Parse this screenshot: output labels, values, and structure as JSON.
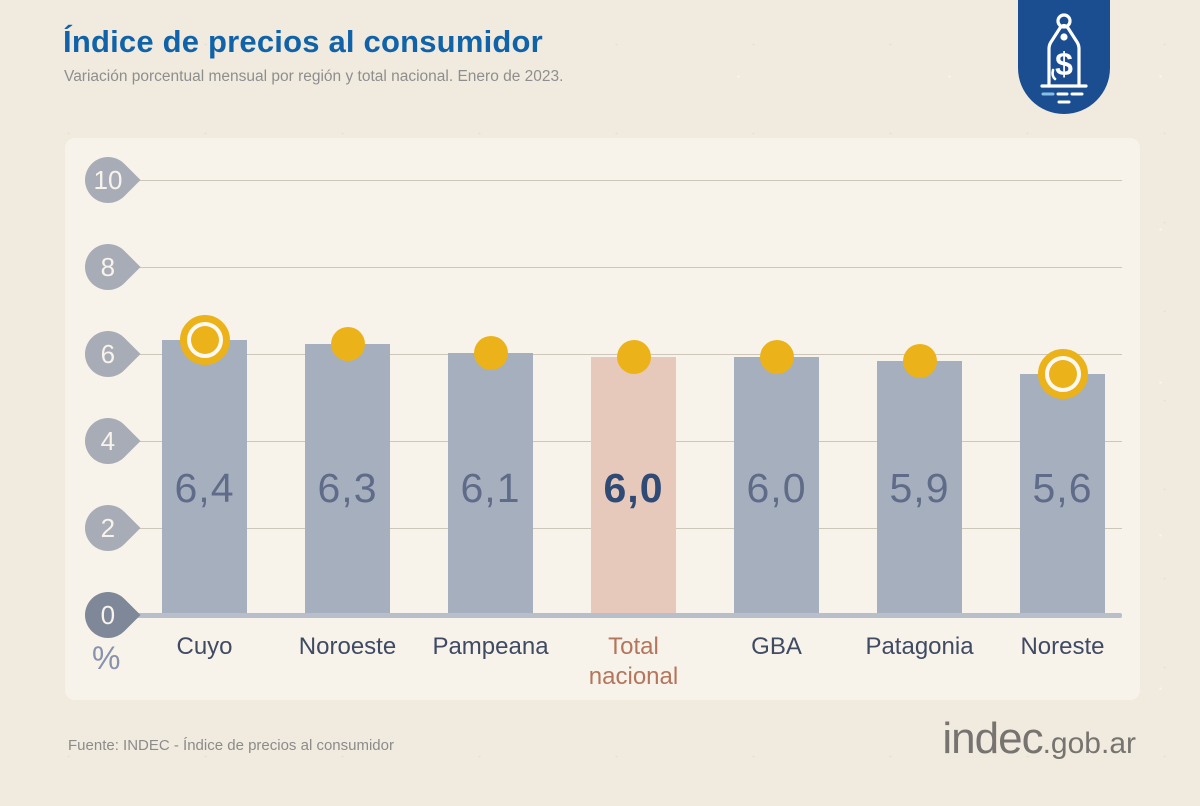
{
  "header": {
    "title": "Índice de precios al consumidor",
    "subtitle": "Variación porcentual mensual por región y total nacional. Enero de 2023."
  },
  "footer": {
    "source": "Fuente: INDEC - Índice de precios al consumidor",
    "logo_main": "indec",
    "logo_suffix": ".gob.ar"
  },
  "chart_data": {
    "type": "bar",
    "title": "Índice de precios al consumidor",
    "subtitle": "Variación porcentual mensual por región y total nacional. Enero de 2023.",
    "unit_label": "%",
    "categories": [
      "Cuyo",
      "Noroeste",
      "Pampeana",
      "Total nacional",
      "GBA",
      "Patagonia",
      "Noreste"
    ],
    "values": [
      6.4,
      6.3,
      6.1,
      6.0,
      6.0,
      5.9,
      5.6
    ],
    "value_labels": [
      "6,4",
      "6,3",
      "6,1",
      "6,0",
      "6,0",
      "5,9",
      "5,6"
    ],
    "highlighted_category": "Total nacional",
    "ringed_marker_categories": [
      "Cuyo",
      "Noreste"
    ],
    "y_ticks": [
      0,
      2,
      4,
      6,
      8,
      10
    ],
    "ylim": [
      0,
      10
    ],
    "grid": true,
    "legend": false,
    "colors": {
      "bar": "#a6afbe",
      "bar_highlight": "#e7c9bb",
      "marker_dot": "#ebb21a",
      "ring_gap": "#fdf9f2",
      "value_text": "#5f6b88",
      "value_text_highlight": "#2f4a74",
      "label_text": "#3f4a63",
      "label_text_highlight": "#b3765c",
      "title_blue": "#1163a9",
      "badge_blue": "#1b4e91"
    }
  }
}
